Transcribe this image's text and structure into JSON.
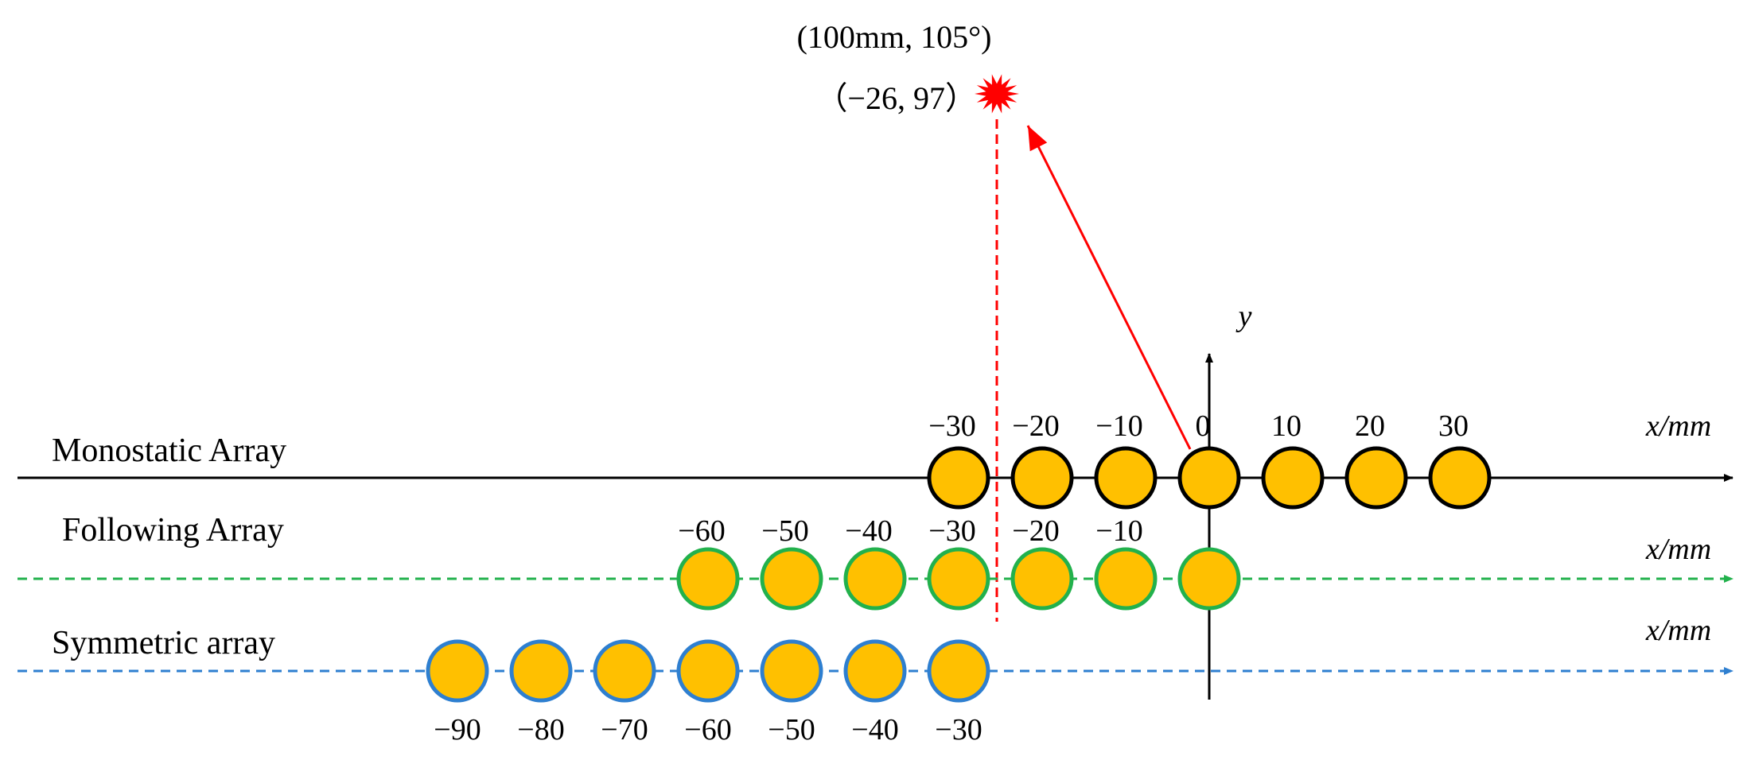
{
  "target": {
    "polar_label": "(100mm, 105°)",
    "cartesian_label": "（−26, 97）"
  },
  "y_axis_label": "y",
  "colors": {
    "element_fill": "#FFC000",
    "monostatic_stroke": "#000000",
    "following_stroke": "#22B14C",
    "symmetric_stroke": "#2E7FD0",
    "target": "#FF0000",
    "axis": "#000000"
  },
  "rows": [
    {
      "id": "monostatic",
      "label": "Monostatic Array",
      "axis_label": "x/mm",
      "line_style": "solid",
      "element_positions": [
        -30,
        -20,
        -10,
        0,
        10,
        20,
        30
      ],
      "tick_values": [
        -30,
        -20,
        -10,
        0,
        10,
        20,
        30
      ],
      "tick_labels": [
        "−30",
        "−20",
        "−10",
        "0",
        "10",
        "20",
        "30"
      ]
    },
    {
      "id": "following",
      "label": "Following Array",
      "axis_label": "x/mm",
      "line_style": "dashed",
      "element_positions": [
        -60,
        -50,
        -40,
        -30,
        -20,
        -10,
        0
      ],
      "tick_values": [
        -60,
        -50,
        -40,
        -30,
        -20,
        -10
      ],
      "tick_labels": [
        "−60",
        "−50",
        "−40",
        "−30",
        "−20",
        "−10"
      ]
    },
    {
      "id": "symmetric",
      "label": "Symmetric array",
      "axis_label": "x/mm",
      "line_style": "dashed",
      "element_positions": [
        -90,
        -80,
        -70,
        -60,
        -50,
        -40,
        -30
      ],
      "tick_values": [
        -90,
        -80,
        -70,
        -60,
        -50,
        -40,
        -30
      ],
      "tick_labels": [
        "−90",
        "−80",
        "−70",
        "−60",
        "−50",
        "−40",
        "−30"
      ]
    }
  ]
}
